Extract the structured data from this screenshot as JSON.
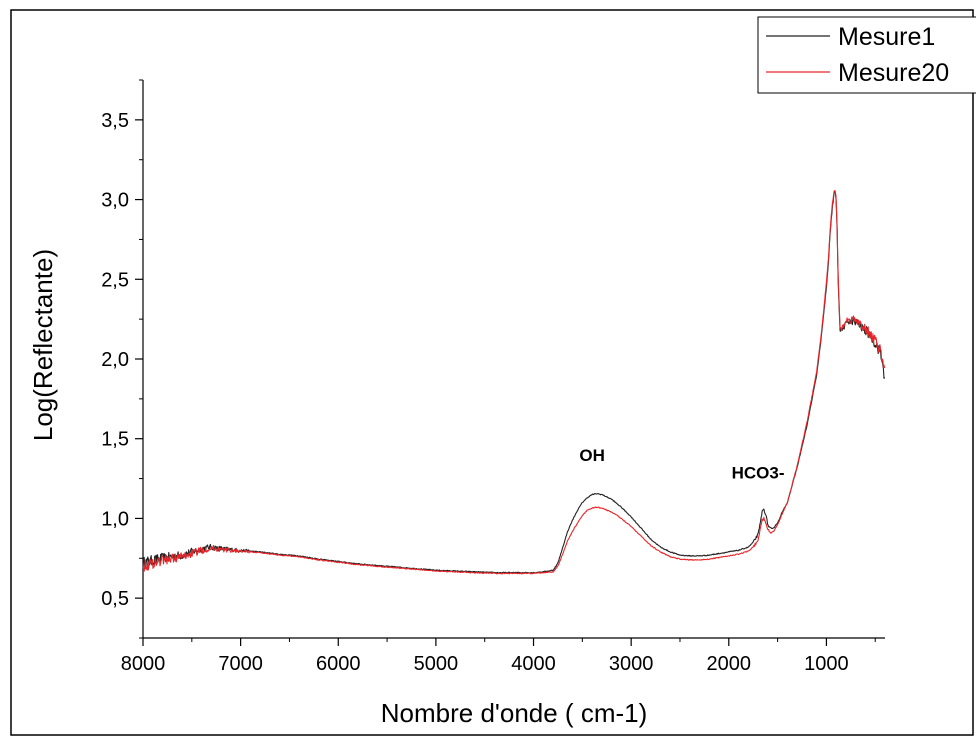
{
  "chart_data": {
    "type": "line",
    "title": "",
    "xlabel": "Nombre d'onde ( cm-1)",
    "ylabel": "Log(Reflectante)",
    "x_reversed": true,
    "xlim": [
      8000,
      400
    ],
    "ylim": [
      0.25,
      3.75
    ],
    "x_ticks": [
      {
        "value": 8000,
        "label": "8000"
      },
      {
        "value": 7000,
        "label": "7000"
      },
      {
        "value": 6000,
        "label": "6000"
      },
      {
        "value": 5000,
        "label": "5000"
      },
      {
        "value": 4000,
        "label": "4000"
      },
      {
        "value": 3000,
        "label": "3000"
      },
      {
        "value": 2000,
        "label": "2000"
      },
      {
        "value": 1000,
        "label": "1000"
      }
    ],
    "y_ticks": [
      {
        "value": 0.5,
        "label": "0,5"
      },
      {
        "value": 1.0,
        "label": "1,0"
      },
      {
        "value": 1.5,
        "label": "1,5"
      },
      {
        "value": 2.0,
        "label": "2,0"
      },
      {
        "value": 2.5,
        "label": "2,5"
      },
      {
        "value": 3.0,
        "label": "3,0"
      },
      {
        "value": 3.5,
        "label": "3,5"
      }
    ],
    "grid": false,
    "legend": "top-right",
    "annotations": [
      {
        "text": "OH",
        "x": 3400,
        "y": 1.36
      },
      {
        "text": "HCO3-",
        "x": 1700,
        "y": 1.25
      }
    ],
    "series": [
      {
        "name": "Mesure1",
        "color": "#222222",
        "x": [
          8000,
          7800,
          7600,
          7400,
          7300,
          7200,
          7000,
          6800,
          6600,
          6400,
          6200,
          6000,
          5800,
          5600,
          5400,
          5200,
          5000,
          4800,
          4600,
          4400,
          4200,
          4000,
          3900,
          3800,
          3750,
          3700,
          3650,
          3600,
          3550,
          3500,
          3450,
          3400,
          3350,
          3300,
          3200,
          3100,
          3000,
          2900,
          2800,
          2700,
          2600,
          2500,
          2400,
          2300,
          2200,
          2100,
          2000,
          1900,
          1800,
          1750,
          1700,
          1680,
          1660,
          1640,
          1620,
          1600,
          1580,
          1560,
          1540,
          1520,
          1500,
          1480,
          1460,
          1400,
          1300,
          1200,
          1100,
          1050,
          1000,
          980,
          960,
          940,
          920,
          910,
          900,
          890,
          880,
          860,
          840,
          820,
          800,
          780,
          750,
          720,
          700,
          680,
          650,
          600,
          550,
          500,
          450,
          420,
          400
        ],
        "y": [
          0.72,
          0.75,
          0.77,
          0.81,
          0.82,
          0.81,
          0.8,
          0.79,
          0.775,
          0.765,
          0.745,
          0.73,
          0.715,
          0.705,
          0.695,
          0.685,
          0.675,
          0.67,
          0.665,
          0.66,
          0.66,
          0.66,
          0.665,
          0.675,
          0.72,
          0.82,
          0.92,
          0.99,
          1.05,
          1.1,
          1.13,
          1.15,
          1.155,
          1.15,
          1.12,
          1.07,
          1.01,
          0.94,
          0.87,
          0.82,
          0.79,
          0.77,
          0.765,
          0.765,
          0.77,
          0.78,
          0.79,
          0.8,
          0.82,
          0.85,
          0.9,
          0.96,
          1.04,
          1.06,
          1.02,
          0.96,
          0.94,
          0.93,
          0.94,
          0.96,
          0.97,
          1.0,
          1.03,
          1.1,
          1.32,
          1.58,
          1.9,
          2.15,
          2.45,
          2.6,
          2.8,
          2.95,
          3.04,
          3.05,
          2.98,
          2.8,
          2.5,
          2.18,
          2.18,
          2.2,
          2.22,
          2.24,
          2.23,
          2.24,
          2.22,
          2.23,
          2.2,
          2.18,
          2.15,
          2.1,
          2.05,
          1.95,
          1.88
        ]
      },
      {
        "name": "Mesure20",
        "color": "#e8262a",
        "x": [
          8000,
          7800,
          7600,
          7400,
          7300,
          7200,
          7000,
          6800,
          6600,
          6400,
          6200,
          6000,
          5800,
          5600,
          5400,
          5200,
          5000,
          4800,
          4600,
          4400,
          4200,
          4000,
          3900,
          3800,
          3750,
          3700,
          3650,
          3600,
          3550,
          3500,
          3450,
          3400,
          3350,
          3300,
          3200,
          3100,
          3000,
          2900,
          2800,
          2700,
          2600,
          2500,
          2400,
          2300,
          2200,
          2100,
          2000,
          1900,
          1800,
          1750,
          1700,
          1680,
          1660,
          1640,
          1620,
          1600,
          1580,
          1560,
          1540,
          1520,
          1500,
          1480,
          1460,
          1400,
          1300,
          1200,
          1100,
          1050,
          1000,
          980,
          960,
          940,
          920,
          910,
          900,
          890,
          880,
          860,
          840,
          820,
          800,
          780,
          750,
          720,
          700,
          680,
          650,
          600,
          550,
          500,
          450,
          420,
          400
        ],
        "y": [
          0.7,
          0.74,
          0.76,
          0.8,
          0.815,
          0.805,
          0.795,
          0.785,
          0.77,
          0.76,
          0.74,
          0.725,
          0.71,
          0.7,
          0.69,
          0.68,
          0.67,
          0.665,
          0.66,
          0.655,
          0.655,
          0.655,
          0.66,
          0.665,
          0.7,
          0.78,
          0.86,
          0.92,
          0.97,
          1.02,
          1.05,
          1.065,
          1.07,
          1.065,
          1.04,
          1.0,
          0.95,
          0.89,
          0.83,
          0.79,
          0.76,
          0.745,
          0.74,
          0.74,
          0.745,
          0.755,
          0.765,
          0.775,
          0.795,
          0.82,
          0.86,
          0.92,
          0.99,
          1.0,
          0.97,
          0.93,
          0.915,
          0.91,
          0.92,
          0.94,
          0.96,
          0.99,
          1.02,
          1.1,
          1.33,
          1.6,
          1.92,
          2.17,
          2.48,
          2.63,
          2.83,
          2.98,
          3.06,
          3.07,
          3.0,
          2.82,
          2.52,
          2.19,
          2.19,
          2.21,
          2.23,
          2.25,
          2.24,
          2.25,
          2.23,
          2.24,
          2.21,
          2.19,
          2.16,
          2.11,
          2.06,
          1.97,
          1.9
        ]
      }
    ]
  }
}
